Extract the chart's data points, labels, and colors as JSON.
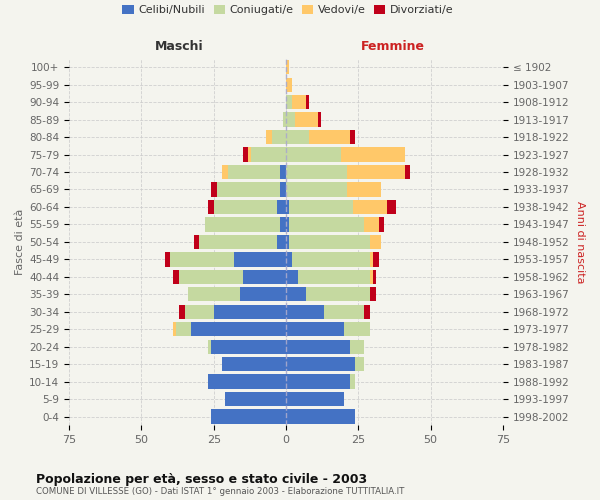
{
  "age_groups": [
    "100+",
    "95-99",
    "90-94",
    "85-89",
    "80-84",
    "75-79",
    "70-74",
    "65-69",
    "60-64",
    "55-59",
    "50-54",
    "45-49",
    "40-44",
    "35-39",
    "30-34",
    "25-29",
    "20-24",
    "15-19",
    "10-14",
    "5-9",
    "0-4"
  ],
  "birth_years": [
    "≤ 1902",
    "1903-1907",
    "1908-1912",
    "1913-1917",
    "1918-1922",
    "1923-1927",
    "1928-1932",
    "1933-1937",
    "1938-1942",
    "1943-1947",
    "1948-1952",
    "1953-1957",
    "1958-1962",
    "1963-1967",
    "1968-1972",
    "1973-1977",
    "1978-1982",
    "1983-1987",
    "1988-1992",
    "1993-1997",
    "1998-2002"
  ],
  "males": {
    "celibi": [
      0,
      0,
      0,
      0,
      0,
      0,
      2,
      2,
      3,
      2,
      3,
      18,
      15,
      16,
      25,
      33,
      26,
      22,
      27,
      21,
      26
    ],
    "coniugati": [
      0,
      0,
      0,
      1,
      5,
      12,
      18,
      22,
      22,
      26,
      27,
      22,
      22,
      18,
      10,
      5,
      1,
      0,
      0,
      0,
      0
    ],
    "vedovi": [
      0,
      0,
      0,
      0,
      2,
      1,
      2,
      0,
      0,
      0,
      0,
      0,
      0,
      0,
      0,
      1,
      0,
      0,
      0,
      0,
      0
    ],
    "divorziati": [
      0,
      0,
      0,
      0,
      0,
      2,
      0,
      2,
      2,
      0,
      2,
      2,
      2,
      0,
      2,
      0,
      0,
      0,
      0,
      0,
      0
    ]
  },
  "females": {
    "nubili": [
      0,
      0,
      0,
      0,
      0,
      0,
      0,
      0,
      1,
      1,
      1,
      2,
      4,
      7,
      13,
      20,
      22,
      24,
      22,
      20,
      24
    ],
    "coniugate": [
      0,
      0,
      2,
      3,
      8,
      19,
      21,
      21,
      22,
      26,
      28,
      27,
      25,
      22,
      14,
      9,
      5,
      3,
      2,
      0,
      0
    ],
    "vedove": [
      1,
      2,
      5,
      8,
      14,
      22,
      20,
      12,
      12,
      5,
      4,
      1,
      1,
      0,
      0,
      0,
      0,
      0,
      0,
      0,
      0
    ],
    "divorziate": [
      0,
      0,
      1,
      1,
      2,
      0,
      2,
      0,
      3,
      2,
      0,
      2,
      1,
      2,
      2,
      0,
      0,
      0,
      0,
      0,
      0
    ]
  },
  "colors": {
    "celibi_nubili": "#4472c4",
    "coniugati": "#c5d9a0",
    "vedovi": "#ffc869",
    "divorziati": "#c0001a"
  },
  "xlim": 75,
  "title": "Popolazione per età, sesso e stato civile - 2003",
  "subtitle": "COMUNE DI VILLESSE (GO) - Dati ISTAT 1° gennaio 2003 - Elaborazione TUTTITALIA.IT",
  "maschi_label": "Maschi",
  "femmine_label": "Femmine",
  "ylabel_left": "Fasce di età",
  "ylabel_right": "Anni di nascita",
  "bg_color": "#f4f4ee",
  "bar_height": 0.82,
  "grid_color": "#cccccc"
}
